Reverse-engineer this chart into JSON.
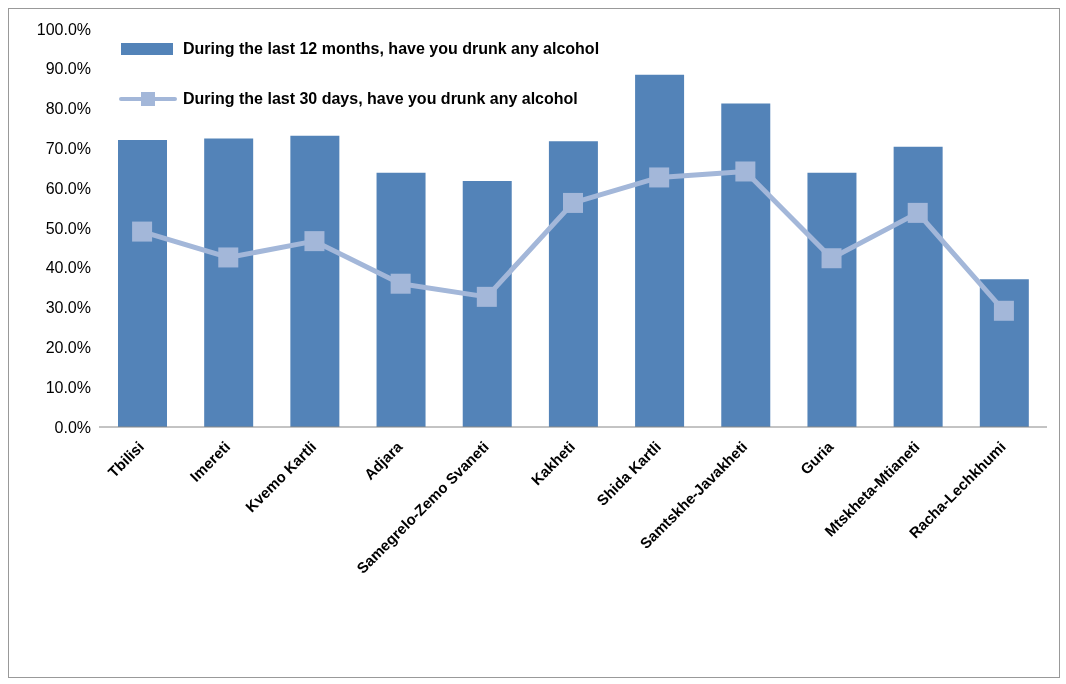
{
  "chart_data": {
    "type": "bar",
    "categories": [
      "Tbilisi",
      "Imereti",
      "Kvemo Kartli",
      "Adjara",
      "Samegrelo-Zemo Svaneti",
      "Kakheti",
      "Shida Kartli",
      "Samtskhe-Javakheti",
      "Guria",
      "Mtskheta-Mtianeti",
      "Racha-Lechkhumi"
    ],
    "series": [
      {
        "name": "During the last 12 months, have you drunk any alcohol",
        "color": "#5383b8",
        "values": [
          72.1,
          72.5,
          73.2,
          63.9,
          61.8,
          71.8,
          88.5,
          81.3,
          63.9,
          70.4,
          37.1
        ]
      },
      {
        "name": "During the last 30 days, have you drunk any alcohol",
        "type": "line",
        "color": "#a3b7d9",
        "marker": "square",
        "values": [
          49.1,
          42.6,
          46.7,
          36.0,
          32.7,
          56.3,
          62.7,
          64.2,
          42.4,
          53.8,
          29.2
        ]
      }
    ],
    "ylim": [
      0,
      100
    ],
    "yticks": [
      {
        "value": 0,
        "label": "0.0%"
      },
      {
        "value": 10,
        "label": "10.0%"
      },
      {
        "value": 20,
        "label": "20.0%"
      },
      {
        "value": 30,
        "label": "30.0%"
      },
      {
        "value": 40,
        "label": "40.0%"
      },
      {
        "value": 50,
        "label": "50.0%"
      },
      {
        "value": 60,
        "label": "60.0%"
      },
      {
        "value": 70,
        "label": "70.0%"
      },
      {
        "value": 80,
        "label": "80.0%"
      },
      {
        "value": 90,
        "label": "90.0%"
      },
      {
        "value": 100,
        "label": "100.0%"
      }
    ],
    "grid": false,
    "legend": "top left"
  }
}
